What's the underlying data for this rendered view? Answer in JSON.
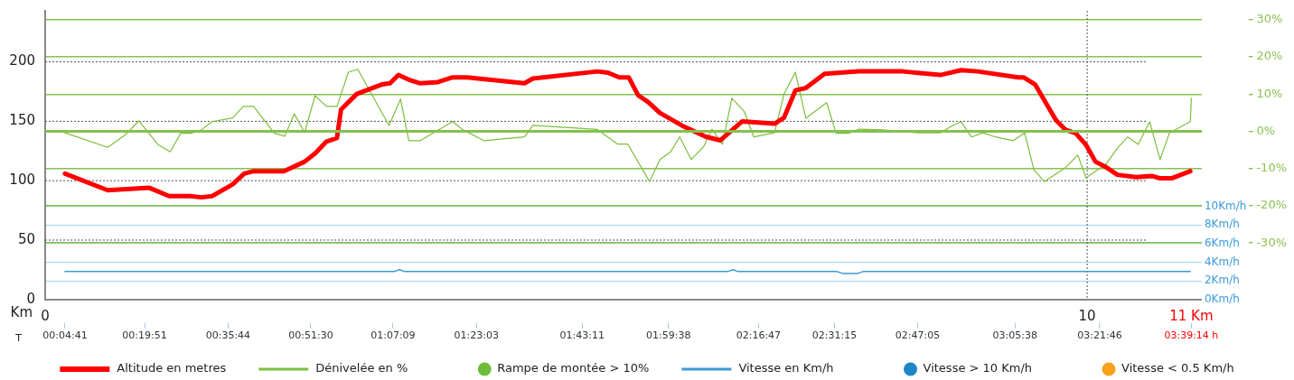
{
  "chart_data": {
    "type": "line",
    "xlabel": "Km",
    "x2label": "T",
    "legend": "bottom",
    "grid": true,
    "marker": "none",
    "line_style": "solid",
    "xlim": [
      0,
      11.1
    ],
    "xticks": [
      0,
      10,
      {
        "value": 11,
        "label": "11 Km"
      }
    ],
    "x2lim": [
      0.015,
      3.687
    ],
    "x2ticks": [
      {
        "value": 0.0781,
        "label": "00:04:41"
      },
      {
        "value": 0.3308,
        "label": "00:19:51"
      },
      {
        "value": 0.5956,
        "label": "00:35:44"
      },
      {
        "value": 0.8583,
        "label": "00:51:30"
      },
      {
        "value": 1.1192,
        "label": "01:07:09"
      },
      {
        "value": 1.3842,
        "label": "01:23:03"
      },
      {
        "value": 1.7197,
        "label": "01:43:11"
      },
      {
        "value": 1.9939,
        "label": "01:59:38"
      },
      {
        "value": 2.2797,
        "label": "02:16:47"
      },
      {
        "value": 2.5208,
        "label": "02:31:15"
      },
      {
        "value": 2.7847,
        "label": "02:47:05"
      },
      {
        "value": 3.0939,
        "label": "03:05:38"
      },
      {
        "value": 3.3628,
        "label": "03:21:46"
      },
      {
        "value": 3.6539,
        "label": "03:39:14 h"
      }
    ],
    "ylim": [
      0,
      243
    ],
    "yticks": [
      0,
      50,
      100,
      150,
      200
    ],
    "y2lim": [
      -45.2,
      32.4
    ],
    "y2ticks": [
      {
        "value": 30,
        "label": "30%"
      },
      {
        "value": 20,
        "label": "20%"
      },
      {
        "value": 10,
        "label": "10%"
      },
      {
        "value": 0,
        "label": "0%"
      },
      {
        "value": -10,
        "label": "-10%"
      },
      {
        "value": -20,
        "label": "-20%"
      },
      {
        "value": -30,
        "label": "-30%"
      }
    ],
    "y3lim": [
      0,
      31
    ],
    "y3ticks": [
      {
        "value": 0,
        "label": "0Km/h"
      },
      {
        "value": 2,
        "label": "2Km/h"
      },
      {
        "value": 4,
        "label": "4Km/h"
      },
      {
        "value": 6,
        "label": "6Km/h"
      },
      {
        "value": 8,
        "label": "8Km/h"
      },
      {
        "value": 10,
        "label": "10Km/h"
      }
    ],
    "ref_lines": [
      {
        "axis": "y2",
        "value": 0,
        "color": "#86c04e"
      }
    ],
    "series": [
      {
        "name": "Altitude en metres",
        "color": "#ff0000",
        "x": [
          0.19,
          0.6,
          1.0,
          1.19,
          1.39,
          1.5,
          1.6,
          1.8,
          1.91,
          2.0,
          2.29,
          2.49,
          2.59,
          2.7,
          2.8,
          2.84,
          2.99,
          3.23,
          3.31,
          3.39,
          3.49,
          3.6,
          3.77,
          3.91,
          4.05,
          4.6,
          4.68,
          5.3,
          5.4,
          5.51,
          5.6,
          5.69,
          5.79,
          5.9,
          6.12,
          6.34,
          6.48,
          6.69,
          7.0,
          7.09,
          7.2,
          7.3,
          7.48,
          7.81,
          8.23,
          8.59,
          8.79,
          8.95,
          9.34,
          9.39,
          9.5,
          9.7,
          9.79,
          9.89,
          9.99,
          10.08,
          10.17,
          10.29,
          10.47,
          10.62,
          10.7,
          10.81,
          10.99
        ],
        "values": [
          106,
          92,
          94,
          87,
          87,
          86,
          87,
          97,
          106,
          108,
          108,
          116,
          123,
          133,
          136,
          160,
          173,
          181,
          182,
          189,
          185,
          182,
          183,
          187,
          187,
          182,
          186,
          192,
          191,
          187,
          187,
          172,
          166,
          157,
          146,
          137,
          134,
          150,
          148,
          153,
          176,
          178,
          190,
          192,
          192,
          189,
          193,
          192,
          187,
          187,
          181,
          151,
          143,
          140,
          130,
          116,
          112,
          105,
          103,
          104,
          102,
          102,
          108
        ]
      },
      {
        "name": "Dénivelée en %",
        "axis": "y2",
        "color": "#7dbf3f",
        "x": [
          0.19,
          0.6,
          0.77,
          0.9,
          1.08,
          1.2,
          1.3,
          1.4,
          1.5,
          1.6,
          1.8,
          1.9,
          2.0,
          2.2,
          2.3,
          2.39,
          2.49,
          2.59,
          2.7,
          2.8,
          2.91,
          3.0,
          3.3,
          3.41,
          3.49,
          3.6,
          3.91,
          4.01,
          4.21,
          4.6,
          4.68,
          5.3,
          5.49,
          5.59,
          5.8,
          5.9,
          6.0,
          6.09,
          6.2,
          6.32,
          6.4,
          6.5,
          6.59,
          6.71,
          6.8,
          7.0,
          7.09,
          7.2,
          7.3,
          7.5,
          7.59,
          7.71,
          7.81,
          8.04,
          8.37,
          8.59,
          8.7,
          8.79,
          8.89,
          9.0,
          9.12,
          9.29,
          9.4,
          9.49,
          9.59,
          9.79,
          9.91,
          9.99,
          10.18,
          10.29,
          10.39,
          10.49,
          10.6,
          10.7,
          10.79,
          10.99,
          11.0
        ],
        "values": [
          -0.4,
          -4.3,
          -0.9,
          2.8,
          -3.5,
          -5.5,
          -0.5,
          -0.5,
          0.4,
          2.6,
          3.6,
          6.7,
          6.7,
          -0.5,
          -1.3,
          4.7,
          -0.3,
          9.6,
          6.7,
          6.7,
          15.9,
          16.7,
          1.6,
          8.7,
          -2.5,
          -2.5,
          2.6,
          0.4,
          -2.5,
          -1.5,
          1.6,
          0.5,
          -3.4,
          -3.4,
          -13.5,
          -7.6,
          -5.6,
          -1.5,
          -7.6,
          -4.1,
          0.6,
          -3.5,
          8.9,
          5.3,
          -1.5,
          -0.4,
          10.0,
          15.9,
          3.5,
          7.7,
          -0.5,
          -0.5,
          0.6,
          0.4,
          -0.4,
          -0.4,
          1.4,
          2.6,
          -1.5,
          -0.4,
          -1.5,
          -2.5,
          -0.4,
          -10.4,
          -13.5,
          -9.8,
          -6.4,
          -12.5,
          -8.8,
          -4.5,
          -1.5,
          -3.5,
          2.6,
          -7.6,
          -0.4,
          2.6,
          8.9
        ]
      },
      {
        "name": "Rampe de montée > 10%",
        "type": "scatter",
        "axis": "y2",
        "color": "#6dbd3a",
        "marker": "circle"
      },
      {
        "name": "Vitesse en Km/h",
        "axis": "y3",
        "color": "#3a9ad9",
        "x": [
          0.19,
          3.35,
          3.4,
          3.45,
          6.55,
          6.6,
          6.65,
          7.6,
          7.65,
          7.8,
          7.85,
          10.99
        ],
        "values": [
          3.0,
          3.0,
          3.2,
          3.0,
          3.0,
          3.2,
          3.0,
          3.0,
          2.8,
          2.8,
          3.0,
          3.0
        ]
      },
      {
        "name": "Vitesse > 10 Km/h",
        "type": "scatter",
        "axis": "y3",
        "color": "#1c86c8",
        "marker": "circle"
      },
      {
        "name": "Vitesse < 0.5 Km/h",
        "type": "scatter",
        "axis": "y3",
        "color": "#f7a21b",
        "marker": "circle"
      }
    ]
  }
}
